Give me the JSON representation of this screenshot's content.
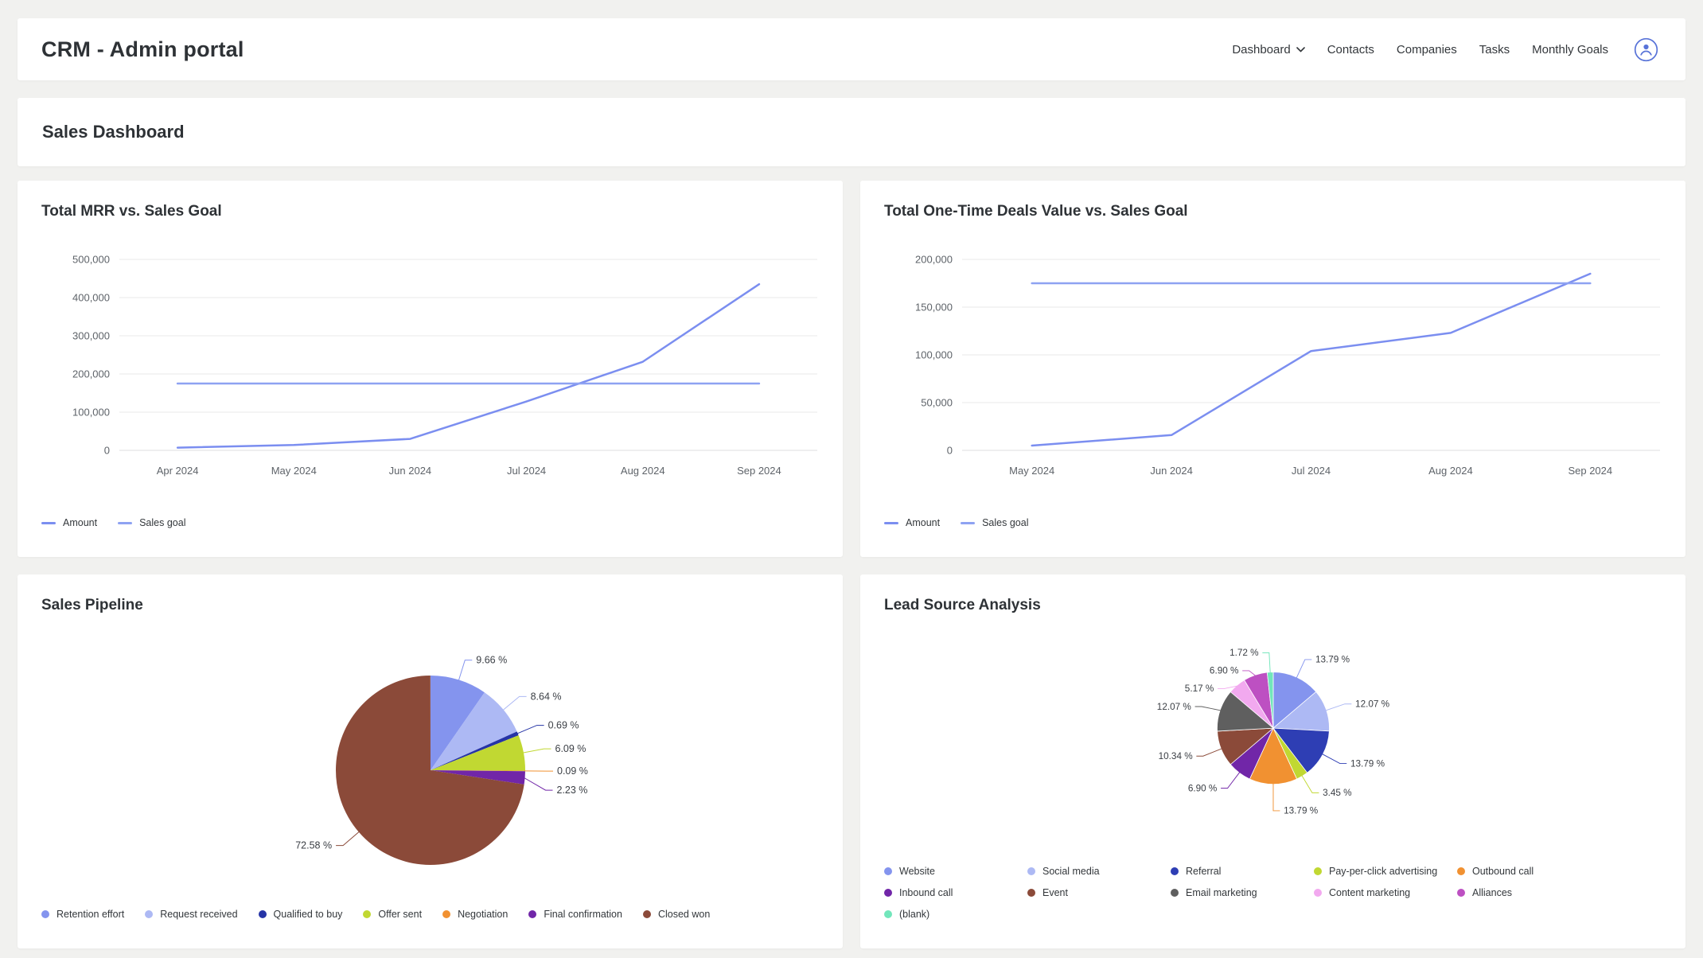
{
  "header": {
    "title": "CRM - Admin portal",
    "nav": [
      {
        "label": "Dashboard",
        "has_dropdown": true
      },
      {
        "label": "Contacts",
        "has_dropdown": false
      },
      {
        "label": "Companies",
        "has_dropdown": false
      },
      {
        "label": "Tasks",
        "has_dropdown": false
      },
      {
        "label": "Monthly Goals",
        "has_dropdown": false
      }
    ],
    "user_icon": "user-avatar-icon"
  },
  "section_title": "Sales Dashboard",
  "colors": {
    "page_bg": "#f1f1ef",
    "card_bg": "#ffffff",
    "accent_blue": "#5873d8",
    "text_primary": "#2e3236",
    "text_secondary": "#5e6369",
    "gridline": "#e8e8e8"
  },
  "chart_data": [
    {
      "type": "line",
      "title": "Total MRR vs. Sales Goal",
      "categories": [
        "Apr 2024",
        "May 2024",
        "Jun 2024",
        "Jul 2024",
        "Aug 2024",
        "Sep 2024"
      ],
      "series": [
        {
          "name": "Amount",
          "values": [
            7000,
            14000,
            30000,
            128000,
            232000,
            435000
          ],
          "color": "#7b8ef0"
        },
        {
          "name": "Sales goal",
          "values": [
            175000,
            175000,
            175000,
            175000,
            175000,
            175000
          ],
          "color": "#8ea2f2"
        }
      ],
      "ylim": [
        0,
        500000
      ],
      "y_ticks": [
        0,
        100000,
        200000,
        300000,
        400000,
        500000
      ],
      "grid": true,
      "legend_position": "bottom-left"
    },
    {
      "type": "line",
      "title": "Total One-Time Deals Value vs. Sales Goal",
      "categories": [
        "May 2024",
        "Jun 2024",
        "Jul 2024",
        "Aug 2024",
        "Sep 2024"
      ],
      "series": [
        {
          "name": "Amount",
          "values": [
            5000,
            16000,
            104000,
            123000,
            185000
          ],
          "color": "#7b8ef0"
        },
        {
          "name": "Sales goal",
          "values": [
            175000,
            175000,
            175000,
            175000,
            175000
          ],
          "color": "#8ea2f2"
        }
      ],
      "ylim": [
        0,
        200000
      ],
      "y_ticks": [
        0,
        50000,
        100000,
        150000,
        200000
      ],
      "grid": true,
      "legend_position": "bottom-left"
    },
    {
      "type": "pie",
      "title": "Sales Pipeline",
      "slices": [
        {
          "label": "Retention effort",
          "pct": 9.66,
          "color": "#8494ee"
        },
        {
          "label": "Request received",
          "pct": 8.64,
          "color": "#adb9f4"
        },
        {
          "label": "Qualified to buy",
          "pct": 0.69,
          "color": "#2634a6"
        },
        {
          "label": "Offer sent",
          "pct": 6.09,
          "color": "#c1d832"
        },
        {
          "label": "Negotiation",
          "pct": 0.09,
          "color": "#f19131"
        },
        {
          "label": "Final confirmation",
          "pct": 2.23,
          "color": "#7126a8"
        },
        {
          "label": "Closed won",
          "pct": 72.58,
          "color": "#8b4a39"
        }
      ],
      "label_format": "percent_two_decimals",
      "legend_position": "bottom-left"
    },
    {
      "type": "pie",
      "title": "Lead Source Analysis",
      "slices": [
        {
          "label": "Website",
          "pct": 13.79,
          "color": "#8494ee"
        },
        {
          "label": "Social media",
          "pct": 12.07,
          "color": "#adb9f4"
        },
        {
          "label": "Referral",
          "pct": 13.79,
          "color": "#2e3eb4"
        },
        {
          "label": "Pay-per-click advertising",
          "pct": 3.45,
          "color": "#c1d832"
        },
        {
          "label": "Outbound call",
          "pct": 13.79,
          "color": "#f19131"
        },
        {
          "label": "Inbound call",
          "pct": 6.9,
          "color": "#7126a8"
        },
        {
          "label": "Event",
          "pct": 10.34,
          "color": "#8b4a39"
        },
        {
          "label": "Email marketing",
          "pct": 12.07,
          "color": "#5f5f5f"
        },
        {
          "label": "Content marketing",
          "pct": 5.17,
          "color": "#f2a9ef"
        },
        {
          "label": "Alliances",
          "pct": 6.9,
          "color": "#bd50c2"
        },
        {
          "label": "(blank)",
          "pct": 1.72,
          "color": "#72e6bb"
        }
      ],
      "label_format": "percent_two_decimals",
      "legend_position": "bottom-left"
    }
  ]
}
